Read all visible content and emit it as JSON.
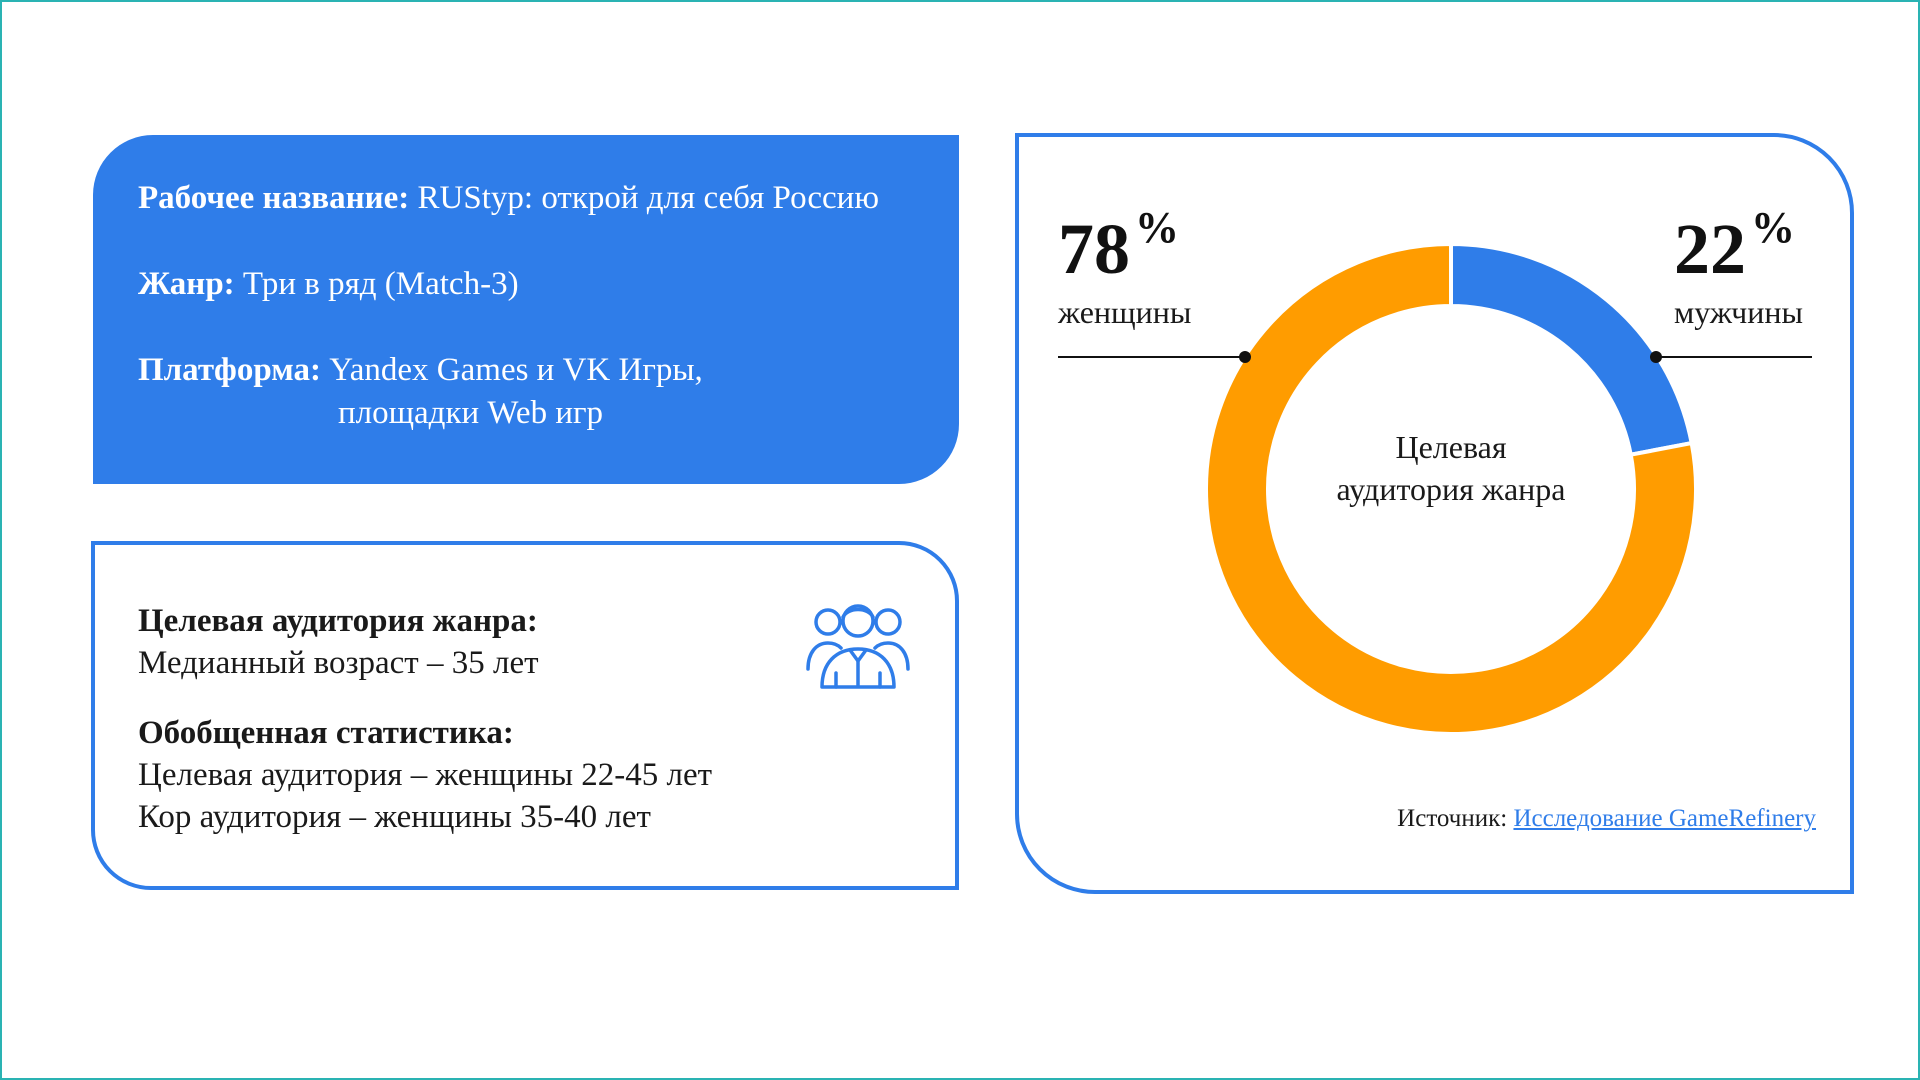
{
  "info_card": {
    "working_title_label": "Рабочее название:",
    "working_title_value": "RUStyp: открой для себя Россию",
    "genre_label": "Жанр:",
    "genre_value": "Три в ряд (Match-3)",
    "platform_label": "Платформа:",
    "platform_line1": "Yandex Games и VK Игры,",
    "platform_line2": "площадки Web игр"
  },
  "audience_card": {
    "heading1": "Целевая аудитория жанра:",
    "median_age": "Медианный возраст – 35 лет",
    "heading2": "Обобщенная статистика:",
    "target_line": "Целевая аудитория – женщины 22-45 лет",
    "core_line": "Кор аудитория – женщины 35-40 лет",
    "icon": "users-group-icon"
  },
  "colors": {
    "blue": "#2f7de9",
    "orange": "#ff9c00",
    "frame": "#2ab3b3"
  },
  "chart_data": {
    "type": "pie",
    "center_label_line1": "Целевая",
    "center_label_line2": "аудитория жанра",
    "slices": [
      {
        "label": "мужчины",
        "value": 22,
        "percent_text": "22",
        "color": "#2f7de9"
      },
      {
        "label": "женщины",
        "value": 78,
        "percent_text": "78",
        "color": "#ff9c00"
      }
    ],
    "percent_sign": "%"
  },
  "source": {
    "label": "Источник:",
    "link_text": "Исследование GameRefinery"
  }
}
